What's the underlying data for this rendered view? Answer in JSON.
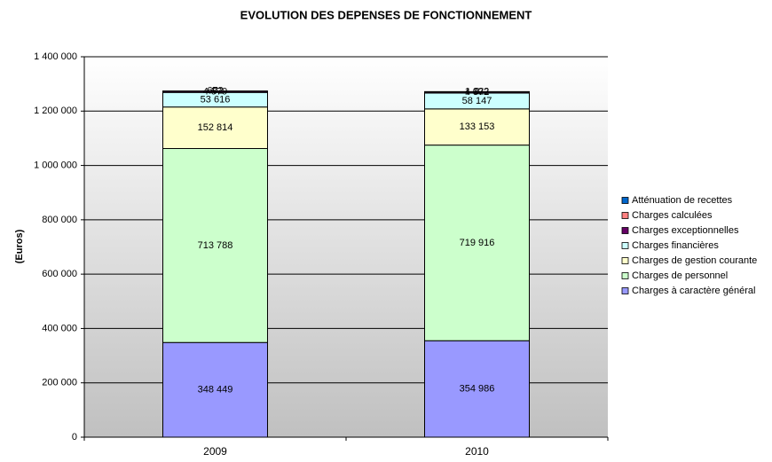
{
  "chart_data": {
    "type": "stacked_bar",
    "title": "EVOLUTION DES DEPENSES DE FONCTIONNEMENT",
    "y_label": "(Euros)",
    "categories": [
      "2009",
      "2010"
    ],
    "series": [
      {
        "name": "Charges à caractère général",
        "color": "#9999ff",
        "values": [
          348449,
          354986
        ],
        "value_labels": [
          "348 449",
          "354 986"
        ]
      },
      {
        "name": "Charges de personnel",
        "color": "#ccffcc",
        "values": [
          713788,
          719916
        ],
        "value_labels": [
          "713 788",
          "719 916"
        ]
      },
      {
        "name": "Charges de gestion courante",
        "color": "#ffffcc",
        "values": [
          152814,
          133153
        ],
        "value_labels": [
          "152 814",
          "133 153"
        ]
      },
      {
        "name": "Charges financières",
        "color": "#ccffff",
        "values": [
          53616,
          58147
        ],
        "value_labels": [
          "53 616",
          "58 147"
        ]
      },
      {
        "name": "Charges exceptionnelles",
        "color": "#660066",
        "values": [
          4579,
          4372
        ],
        "value_labels": [
          "4 579",
          "4 372"
        ]
      },
      {
        "name": "Charges calculées",
        "color": "#ff8080",
        "values": [
          0,
          0
        ],
        "value_labels": [
          "0",
          "0"
        ]
      },
      {
        "name": "Atténuation de recettes",
        "color": "#0066cc",
        "values": [
          672,
          1022
        ],
        "value_labels": [
          "672",
          "1 022"
        ]
      }
    ],
    "ylim": [
      0,
      1400000
    ],
    "yticks": [
      0,
      {
        "value": 200000,
        "label": "200 000"
      },
      {
        "value": 400000,
        "label": "400 000"
      },
      {
        "value": 600000,
        "label": "600 000"
      },
      {
        "value": 800000,
        "label": "800 000"
      },
      {
        "value": 1000000,
        "label": "1 000 000"
      },
      {
        "value": 1200000,
        "label": "1 200 000"
      },
      {
        "value": 1400000,
        "label": "1 400 000"
      }
    ],
    "grid": true,
    "legend": "right"
  }
}
